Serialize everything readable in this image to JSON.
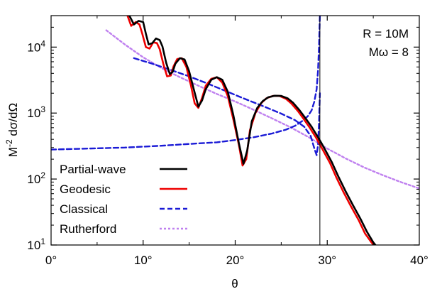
{
  "chart_data": {
    "type": "line",
    "title": "",
    "xlabel": "θ",
    "ylabel_main": "M",
    "ylabel_exp": "-2",
    "ylabel_rest": " dσ/dΩ",
    "xlim": [
      0,
      40
    ],
    "ylim": [
      10,
      30000
    ],
    "yscale": "log",
    "grid": false,
    "x_ticks": [
      {
        "value": 0,
        "label": "0°"
      },
      {
        "value": 10,
        "label": "10°"
      },
      {
        "value": 20,
        "label": "20°"
      },
      {
        "value": 30,
        "label": "30°"
      },
      {
        "value": 40,
        "label": "40°"
      }
    ],
    "y_ticks": [
      {
        "value": 10,
        "base": "10",
        "exp": "1"
      },
      {
        "value": 100,
        "base": "10",
        "exp": "2"
      },
      {
        "value": 1000,
        "base": "10",
        "exp": "3"
      },
      {
        "value": 10000,
        "base": "10",
        "exp": "4"
      }
    ],
    "annotations": [
      "R = 10M",
      "Mω = 8"
    ],
    "vertical_line_x": 29.2,
    "legend_position": "bottom-left",
    "series": [
      {
        "name": "Partial-wave",
        "color": "#000000",
        "style": "solid",
        "x": [
          8.5,
          9.0,
          9.5,
          10.0,
          10.3,
          10.6,
          11.0,
          11.4,
          11.8,
          12.1,
          12.5,
          12.9,
          13.2,
          13.5,
          14.0,
          14.5,
          15.0,
          15.5,
          16.0,
          16.4,
          16.8,
          17.4,
          18.0,
          18.6,
          19.2,
          19.8,
          20.4,
          20.9,
          21.3,
          21.8,
          22.4,
          23.0,
          23.6,
          24.3,
          25.0,
          25.7,
          26.3,
          27.0,
          27.6,
          28.3,
          29.0,
          29.7,
          30.5,
          31.2,
          32.0,
          32.8,
          33.6,
          34.3,
          35.0,
          35.5
        ],
        "y": [
          30000,
          22000,
          25000,
          24000,
          16000,
          11000,
          11500,
          13500,
          12800,
          10200,
          5800,
          3900,
          4200,
          5600,
          6800,
          6500,
          4300,
          2300,
          1250,
          1550,
          2300,
          3200,
          3500,
          3200,
          2100,
          930,
          350,
          170,
          270,
          750,
          1200,
          1520,
          1740,
          1830,
          1820,
          1670,
          1430,
          1100,
          850,
          620,
          430,
          290,
          180,
          110,
          65,
          40,
          25,
          16,
          11,
          9
        ]
      },
      {
        "name": "Geodesic",
        "color": "#ee0000",
        "style": "solid",
        "x": [
          8.3,
          8.7,
          9.2,
          9.6,
          9.9,
          10.3,
          10.7,
          11.1,
          11.5,
          11.8,
          12.2,
          12.6,
          13.0,
          13.3,
          13.7,
          14.2,
          14.7,
          15.2,
          15.6,
          16.0,
          16.4,
          16.8,
          17.4,
          18.0,
          18.6,
          19.2,
          19.8,
          20.4,
          20.8,
          21.2,
          21.6,
          22.2,
          22.8,
          23.4,
          24.1,
          24.8,
          25.5,
          26.1,
          26.8,
          27.4,
          28.1,
          28.8,
          29.5,
          30.3,
          31.0,
          31.8,
          32.6,
          33.4,
          34.1,
          34.8,
          35.3
        ],
        "y": [
          30000,
          21000,
          24000,
          22000,
          16000,
          10000,
          9500,
          11800,
          11500,
          9300,
          5500,
          3600,
          3700,
          5100,
          6600,
          6800,
          5000,
          2600,
          1400,
          1200,
          1700,
          2600,
          3300,
          3500,
          2900,
          1800,
          800,
          330,
          160,
          200,
          550,
          1000,
          1400,
          1680,
          1820,
          1820,
          1650,
          1400,
          1080,
          830,
          600,
          420,
          280,
          175,
          105,
          62,
          38,
          24,
          15,
          11,
          9
        ]
      },
      {
        "name": "Classical",
        "color": "#1a1ad6",
        "style": "dashed",
        "x": [
          0,
          4,
          8,
          12,
          15,
          18,
          20,
          22,
          24,
          25.5,
          26.5,
          27.3,
          27.9,
          28.3,
          28.6,
          28.85,
          29.0,
          29.1,
          29.2
        ],
        "y": [
          280,
          290,
          300,
          320,
          340,
          360,
          390,
          430,
          490,
          560,
          640,
          760,
          900,
          1100,
          1500,
          2300,
          4500,
          10000,
          30000
        ]
      },
      {
        "name": "Classical",
        "color": "#1a1ad6",
        "style": "dashed",
        "x": [
          9.0,
          11,
          13,
          15,
          17,
          19,
          21,
          23,
          25,
          26.5,
          27.5,
          28.2,
          28.6,
          28.85,
          29.0,
          29.1,
          29.2
        ],
        "y": [
          6800,
          5600,
          4500,
          3600,
          2800,
          2150,
          1650,
          1280,
          980,
          780,
          620,
          450,
          290,
          230,
          330,
          700,
          2000
        ]
      },
      {
        "name": "Rutherford",
        "color": "#bf80ef",
        "style": "dotted",
        "x": [
          6.0,
          8,
          10,
          12,
          14,
          16,
          18,
          20,
          22,
          24,
          26,
          28,
          30,
          32,
          34,
          36,
          38,
          40
        ],
        "y": [
          18000,
          11000,
          7000,
          4800,
          3500,
          2600,
          1950,
          1500,
          1120,
          830,
          610,
          430,
          290,
          205,
          150,
          115,
          90,
          72
        ]
      }
    ]
  }
}
